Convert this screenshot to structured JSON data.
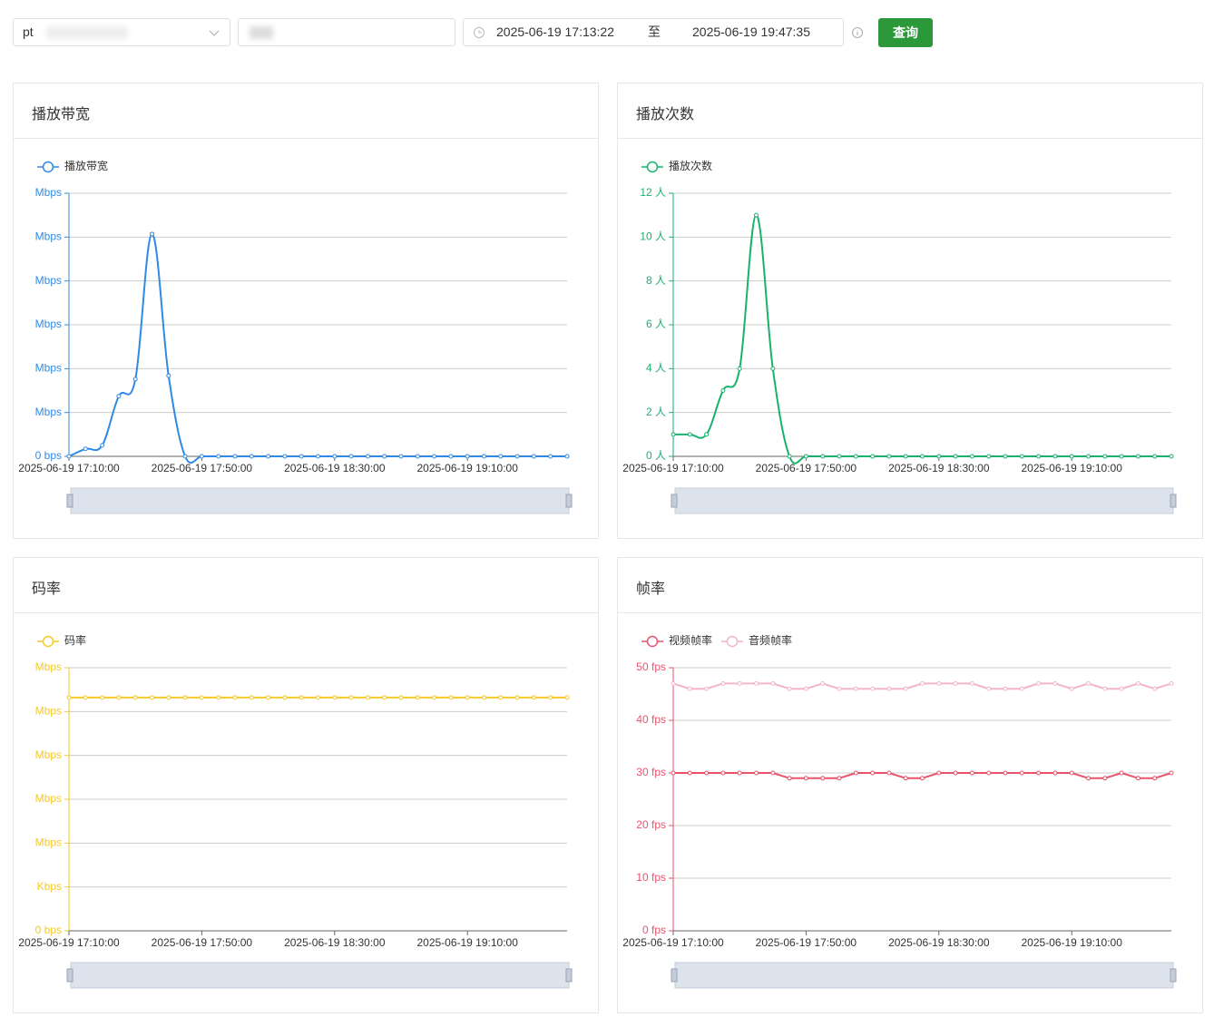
{
  "toolbar": {
    "select": "pt",
    "start": "2025-06-19 17:13:22",
    "separator": "至",
    "end": "2025-06-19 19:47:35",
    "button": "查询"
  },
  "chart_data": [
    {
      "type": "line",
      "title": "播放带宽",
      "smooth": true,
      "axis_color": "#2f8ae5",
      "grid": true,
      "categories": [
        "2025-06-19 17:10:00",
        null,
        null,
        null,
        null,
        null,
        null,
        null,
        "2025-06-19 17:50:00",
        null,
        null,
        null,
        null,
        null,
        null,
        null,
        "2025-06-19 18:30:00",
        null,
        null,
        null,
        null,
        null,
        null,
        null,
        "2025-06-19 19:10:00",
        null,
        null,
        null,
        null,
        null,
        null
      ],
      "series": [
        {
          "name": "播放带宽",
          "color": "#2f8ae5",
          "values": [
            0,
            0.17,
            0.25,
            1.37,
            1.76,
            5.07,
            1.84,
            0,
            0,
            0,
            0,
            0,
            0,
            0,
            0,
            0,
            0,
            0,
            0,
            0,
            0,
            0,
            0,
            0,
            0,
            0,
            0,
            0,
            0,
            0,
            0
          ]
        }
      ],
      "ylim": [
        0,
        6
      ],
      "yticks": [
        {
          "value": 0,
          "label": "0 bps"
        },
        {
          "value": 1,
          "label": "Mbps"
        },
        {
          "value": 2,
          "label": "Mbps"
        },
        {
          "value": 3,
          "label": "Mbps"
        },
        {
          "value": 4,
          "label": "Mbps"
        },
        {
          "value": 5,
          "label": "Mbps"
        },
        {
          "value": 6,
          "label": "Mbps"
        }
      ]
    },
    {
      "type": "line",
      "title": "播放次数",
      "smooth": true,
      "axis_color": "#18b26e",
      "grid": true,
      "categories": [
        "2025-06-19 17:10:00",
        null,
        null,
        null,
        null,
        null,
        null,
        null,
        "2025-06-19 17:50:00",
        null,
        null,
        null,
        null,
        null,
        null,
        null,
        "2025-06-19 18:30:00",
        null,
        null,
        null,
        null,
        null,
        null,
        null,
        "2025-06-19 19:10:00",
        null,
        null,
        null,
        null,
        null,
        null
      ],
      "series": [
        {
          "name": "播放次数",
          "color": "#18b26e",
          "values": [
            1,
            1,
            1,
            3,
            4,
            11,
            4,
            0,
            0,
            0,
            0,
            0,
            0,
            0,
            0,
            0,
            0,
            0,
            0,
            0,
            0,
            0,
            0,
            0,
            0,
            0,
            0,
            0,
            0,
            0,
            0
          ]
        }
      ],
      "ylim": [
        0,
        12
      ],
      "yticks": [
        {
          "value": 0,
          "label": "0 人"
        },
        {
          "value": 2,
          "label": "2 人"
        },
        {
          "value": 4,
          "label": "4 人"
        },
        {
          "value": 6,
          "label": "6 人"
        },
        {
          "value": 8,
          "label": "8 人"
        },
        {
          "value": 10,
          "label": "10 人"
        },
        {
          "value": 12,
          "label": "12 人"
        }
      ]
    },
    {
      "type": "line",
      "title": "码率",
      "smooth": false,
      "axis_color": "#f5c927",
      "grid": true,
      "categories": [
        "2025-06-19 17:10:00",
        null,
        null,
        null,
        null,
        null,
        null,
        null,
        "2025-06-19 17:50:00",
        null,
        null,
        null,
        null,
        null,
        null,
        null,
        "2025-06-19 18:30:00",
        null,
        null,
        null,
        null,
        null,
        null,
        null,
        "2025-06-19 19:10:00",
        null,
        null,
        null,
        null,
        null,
        null
      ],
      "series": [
        {
          "name": "码率",
          "color": "#f5c927",
          "values": [
            5.32,
            5.32,
            5.32,
            5.32,
            5.32,
            5.32,
            5.32,
            5.32,
            5.32,
            5.32,
            5.32,
            5.32,
            5.32,
            5.32,
            5.32,
            5.32,
            5.32,
            5.32,
            5.32,
            5.32,
            5.32,
            5.32,
            5.32,
            5.32,
            5.32,
            5.32,
            5.32,
            5.32,
            5.32,
            5.32,
            5.32
          ]
        }
      ],
      "ylim": [
        0,
        6
      ],
      "yticks": [
        {
          "value": 0,
          "label": "0 bps"
        },
        {
          "value": 1,
          "label": "Kbps"
        },
        {
          "value": 2,
          "label": "Mbps"
        },
        {
          "value": 3,
          "label": "Mbps"
        },
        {
          "value": 4,
          "label": "Mbps"
        },
        {
          "value": 5,
          "label": "Mbps"
        },
        {
          "value": 6,
          "label": "Mbps"
        }
      ]
    },
    {
      "type": "line",
      "title": "帧率",
      "smooth": false,
      "axis_color": "#e8526b",
      "grid": true,
      "categories": [
        "2025-06-19 17:10:00",
        null,
        null,
        null,
        null,
        null,
        null,
        null,
        "2025-06-19 17:50:00",
        null,
        null,
        null,
        null,
        null,
        null,
        null,
        "2025-06-19 18:30:00",
        null,
        null,
        null,
        null,
        null,
        null,
        null,
        "2025-06-19 19:10:00",
        null,
        null,
        null,
        null,
        null,
        null
      ],
      "series": [
        {
          "name": "视频帧率",
          "color": "#e8526b",
          "values": [
            30,
            30,
            30,
            30,
            30,
            30,
            30,
            29,
            29,
            29,
            29,
            30,
            30,
            30,
            29,
            29,
            30,
            30,
            30,
            30,
            30,
            30,
            30,
            30,
            30,
            29,
            29,
            30,
            29,
            29,
            30
          ]
        },
        {
          "name": "音频帧率",
          "color": "#f2b6c6",
          "values": [
            47,
            46,
            46,
            47,
            47,
            47,
            47,
            46,
            46,
            47,
            46,
            46,
            46,
            46,
            46,
            47,
            47,
            47,
            47,
            46,
            46,
            46,
            47,
            47,
            46,
            47,
            46,
            46,
            47,
            46,
            47
          ]
        }
      ],
      "ylim": [
        0,
        50
      ],
      "yticks": [
        {
          "value": 0,
          "label": "0 fps"
        },
        {
          "value": 10,
          "label": "10 fps"
        },
        {
          "value": 20,
          "label": "20 fps"
        },
        {
          "value": 30,
          "label": "30 fps"
        },
        {
          "value": 40,
          "label": "40 fps"
        },
        {
          "value": 50,
          "label": "50 fps"
        }
      ]
    }
  ]
}
